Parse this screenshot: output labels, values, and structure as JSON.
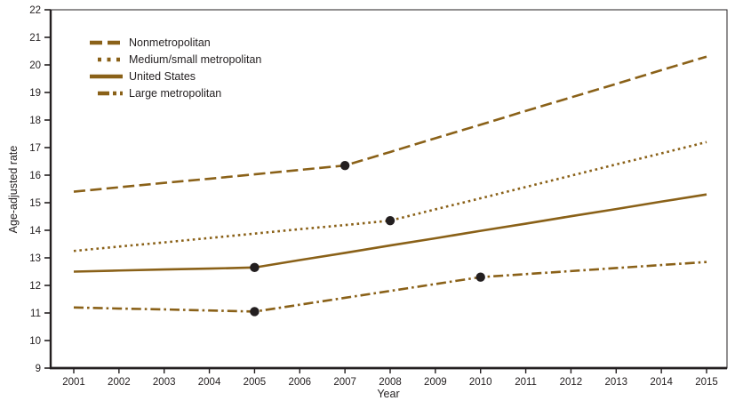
{
  "figure": {
    "ylabel": "Age-adjusted rate",
    "xlabel": "Year"
  },
  "chart_data": {
    "type": "line",
    "xlabel": "Year",
    "ylabel": "Age-adjusted rate",
    "x": [
      2001,
      2002,
      2003,
      2004,
      2005,
      2006,
      2007,
      2008,
      2009,
      2010,
      2011,
      2012,
      2013,
      2014,
      2015
    ],
    "ylim": [
      9,
      22
    ],
    "y_tick_step": 1,
    "grid": false,
    "legend_position": "top-left",
    "line_color": "#8a6118",
    "marker_color": "#231f20",
    "series": [
      {
        "name": "Nonmetropolitan",
        "style": "dashed",
        "values": [
          15.4,
          15.56,
          15.72,
          15.87,
          16.03,
          16.19,
          16.35,
          16.84,
          17.34,
          17.83,
          18.33,
          18.82,
          19.31,
          19.81,
          20.3
        ]
      },
      {
        "name": "Medium/small metropolitan",
        "style": "dotted",
        "values": [
          13.25,
          13.41,
          13.56,
          13.72,
          13.88,
          14.04,
          14.19,
          14.35,
          14.76,
          15.16,
          15.57,
          15.98,
          16.39,
          16.79,
          17.2
        ]
      },
      {
        "name": "United States",
        "style": "solid",
        "values": [
          12.5,
          12.54,
          12.58,
          12.61,
          12.65,
          12.92,
          13.18,
          13.45,
          13.71,
          13.98,
          14.24,
          14.51,
          14.77,
          15.04,
          15.3
        ]
      },
      {
        "name": "Large metropolitan",
        "style": "dash-dot",
        "values": [
          11.2,
          11.16,
          11.13,
          11.09,
          11.05,
          11.3,
          11.55,
          11.8,
          12.05,
          12.3,
          12.41,
          12.52,
          12.63,
          12.74,
          12.85
        ]
      }
    ],
    "joinpoints": [
      {
        "series": "Nonmetropolitan",
        "x": 2007,
        "y": 16.35
      },
      {
        "series": "Medium/small metropolitan",
        "x": 2008,
        "y": 14.35
      },
      {
        "series": "United States",
        "x": 2005,
        "y": 12.65
      },
      {
        "series": "Large metropolitan",
        "x": 2005,
        "y": 11.05
      },
      {
        "series": "Large metropolitan",
        "x": 2010,
        "y": 12.3
      }
    ]
  }
}
